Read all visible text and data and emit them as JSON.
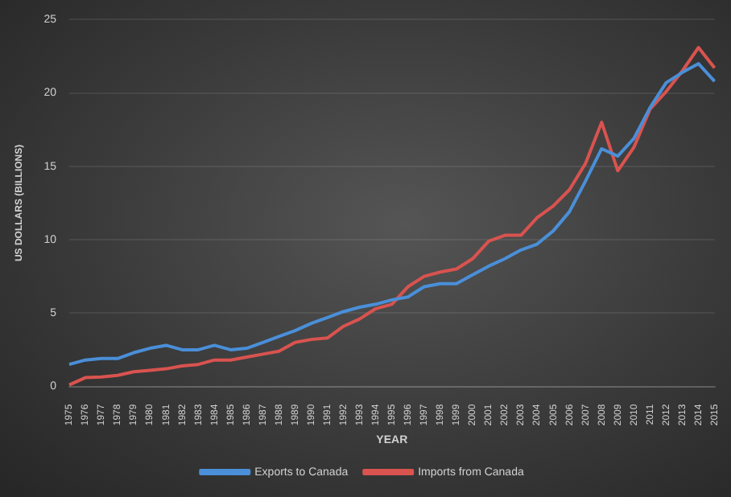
{
  "chart_data": {
    "type": "line",
    "xlabel": "YEAR",
    "ylabel": "US DOLLARS (BILLIONS)",
    "categories": [
      "1975",
      "1976",
      "1977",
      "1978",
      "1979",
      "1980",
      "1981",
      "1982",
      "1983",
      "1984",
      "1985",
      "1986",
      "1987",
      "1988",
      "1989",
      "1990",
      "1991",
      "1992",
      "1993",
      "1994",
      "1995",
      "1996",
      "1997",
      "1998",
      "1999",
      "2000",
      "2001",
      "2002",
      "2003",
      "2004",
      "2005",
      "2006",
      "2007",
      "2008",
      "2009",
      "2010",
      "2011",
      "2012",
      "2013",
      "2014",
      "2015"
    ],
    "series": [
      {
        "name": "Exports to Canada",
        "color": "#4a8fd8",
        "values": [
          1.5,
          1.8,
          1.9,
          1.9,
          2.3,
          2.6,
          2.8,
          2.5,
          2.5,
          2.8,
          2.5,
          2.6,
          3.0,
          3.4,
          3.8,
          4.3,
          4.7,
          5.1,
          5.4,
          5.6,
          5.9,
          6.1,
          6.8,
          7.0,
          7.0,
          7.6,
          8.2,
          8.7,
          9.3,
          9.7,
          10.6,
          11.9,
          14.0,
          16.2,
          15.7,
          16.9,
          19.0,
          20.7,
          21.4,
          22.0,
          20.8
        ]
      },
      {
        "name": "Imports from Canada",
        "color": "#d9534f",
        "values": [
          0.1,
          0.6,
          0.65,
          0.75,
          1.0,
          1.1,
          1.2,
          1.4,
          1.5,
          1.8,
          1.8,
          2.0,
          2.2,
          2.4,
          3.0,
          3.2,
          3.3,
          4.1,
          4.6,
          5.3,
          5.6,
          6.8,
          7.5,
          7.8,
          8.0,
          8.7,
          9.9,
          10.3,
          10.3,
          11.5,
          12.3,
          13.4,
          15.2,
          18.0,
          14.7,
          16.3,
          18.9,
          20.1,
          21.5,
          23.1,
          21.7
        ]
      }
    ],
    "ylim": [
      0,
      25
    ],
    "yticks": [
      0,
      5,
      10,
      15,
      20,
      25
    ],
    "grid": "y",
    "legend": "bottom",
    "marker": "none",
    "line_style": "solid"
  }
}
